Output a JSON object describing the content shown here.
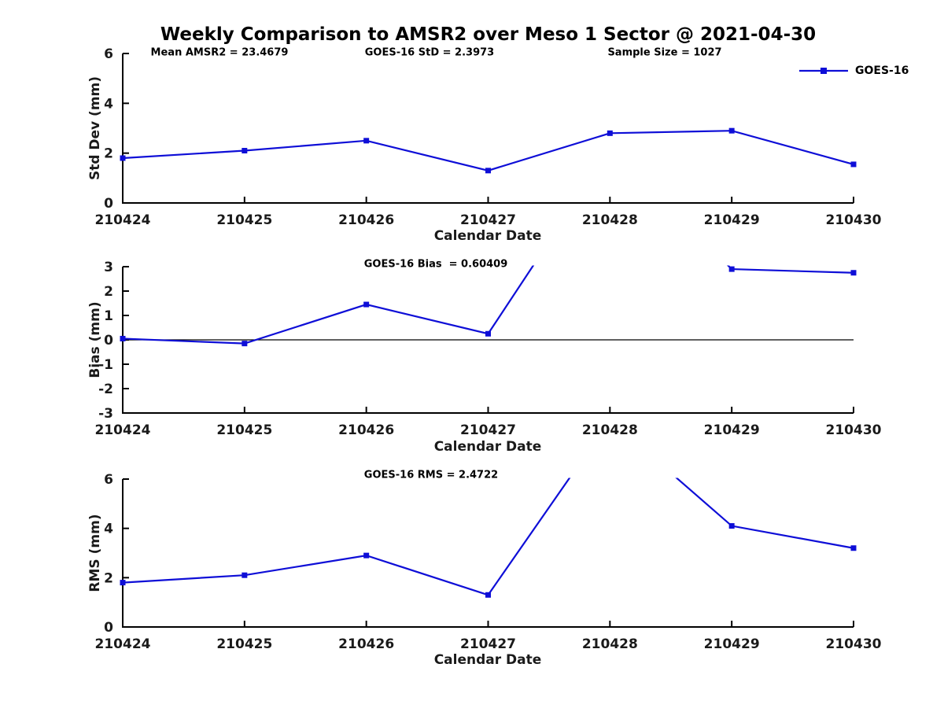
{
  "figure": {
    "title": "Weekly Comparison to AMSR2 over Meso 1 Sector @ 2021-04-30",
    "background_color": "#ffffff",
    "line_color": "#0e0ed7",
    "axis_color": "#000000",
    "text_color": "#1a1a1a"
  },
  "legend": {
    "label": "GOES-16",
    "position": "top-right",
    "marker": "filled-square-on-line"
  },
  "stats": {
    "mean_amsr2": "23.4679",
    "goes16_std": "2.3973",
    "sample_size": "1027",
    "goes16_bias": "0.60409",
    "goes16_rms": "2.4722"
  },
  "chart_data": [
    {
      "type": "line",
      "name": "std-dev",
      "series_name": "GOES-16",
      "categories": [
        "210424",
        "210425",
        "210426",
        "210427",
        "210428",
        "210429",
        "210430"
      ],
      "values": [
        1.8,
        2.1,
        2.5,
        1.3,
        2.8,
        2.9,
        1.55
      ],
      "title": "",
      "xlabel": "Calendar Date",
      "ylabel": "Std Dev (mm)",
      "ylim": [
        0,
        6
      ],
      "yticks": [
        0,
        2,
        4,
        6
      ],
      "grid": false,
      "marker": "filled-square",
      "annotations": [
        {
          "text": "Mean AMSR2 = 23.4679"
        },
        {
          "text": "GOES-16 StD = 2.3973"
        },
        {
          "text": "Sample Size = 1027"
        }
      ]
    },
    {
      "type": "line",
      "name": "bias",
      "series_name": "GOES-16",
      "categories": [
        "210424",
        "210425",
        "210426",
        "210427",
        "210428",
        "210429",
        "210430"
      ],
      "values": [
        0.05,
        -0.15,
        1.45,
        0.25,
        7.8,
        2.9,
        2.75
      ],
      "offscale_points": [
        {
          "category": "210428",
          "estimated_value": 7.8,
          "note": "point above ylim; line clipped at y=3, exact value not shown"
        }
      ],
      "zero_line": true,
      "title": "",
      "xlabel": "Calendar Date",
      "ylabel": "Bias (mm)",
      "ylim": [
        -3,
        3
      ],
      "yticks": [
        -3,
        -2,
        -1,
        0,
        1,
        2,
        3
      ],
      "grid": false,
      "marker": "filled-square",
      "annotations": [
        {
          "text": "GOES-16 Bias  = 0.60409"
        }
      ]
    },
    {
      "type": "line",
      "name": "rms",
      "series_name": "GOES-16",
      "categories": [
        "210424",
        "210425",
        "210426",
        "210427",
        "210428",
        "210429",
        "210430"
      ],
      "values": [
        1.8,
        2.1,
        2.9,
        1.3,
        8.4,
        4.1,
        3.2
      ],
      "offscale_points": [
        {
          "category": "210428",
          "estimated_value": 8.4,
          "note": "point above ylim; line clipped at y=6, exact value not shown"
        }
      ],
      "title": "",
      "xlabel": "Calendar Date",
      "ylabel": "RMS (mm)",
      "ylim": [
        0,
        6
      ],
      "yticks": [
        0,
        2,
        4,
        6
      ],
      "grid": false,
      "marker": "filled-square",
      "annotations": [
        {
          "text": "GOES-16 RMS = 2.4722"
        }
      ]
    }
  ]
}
